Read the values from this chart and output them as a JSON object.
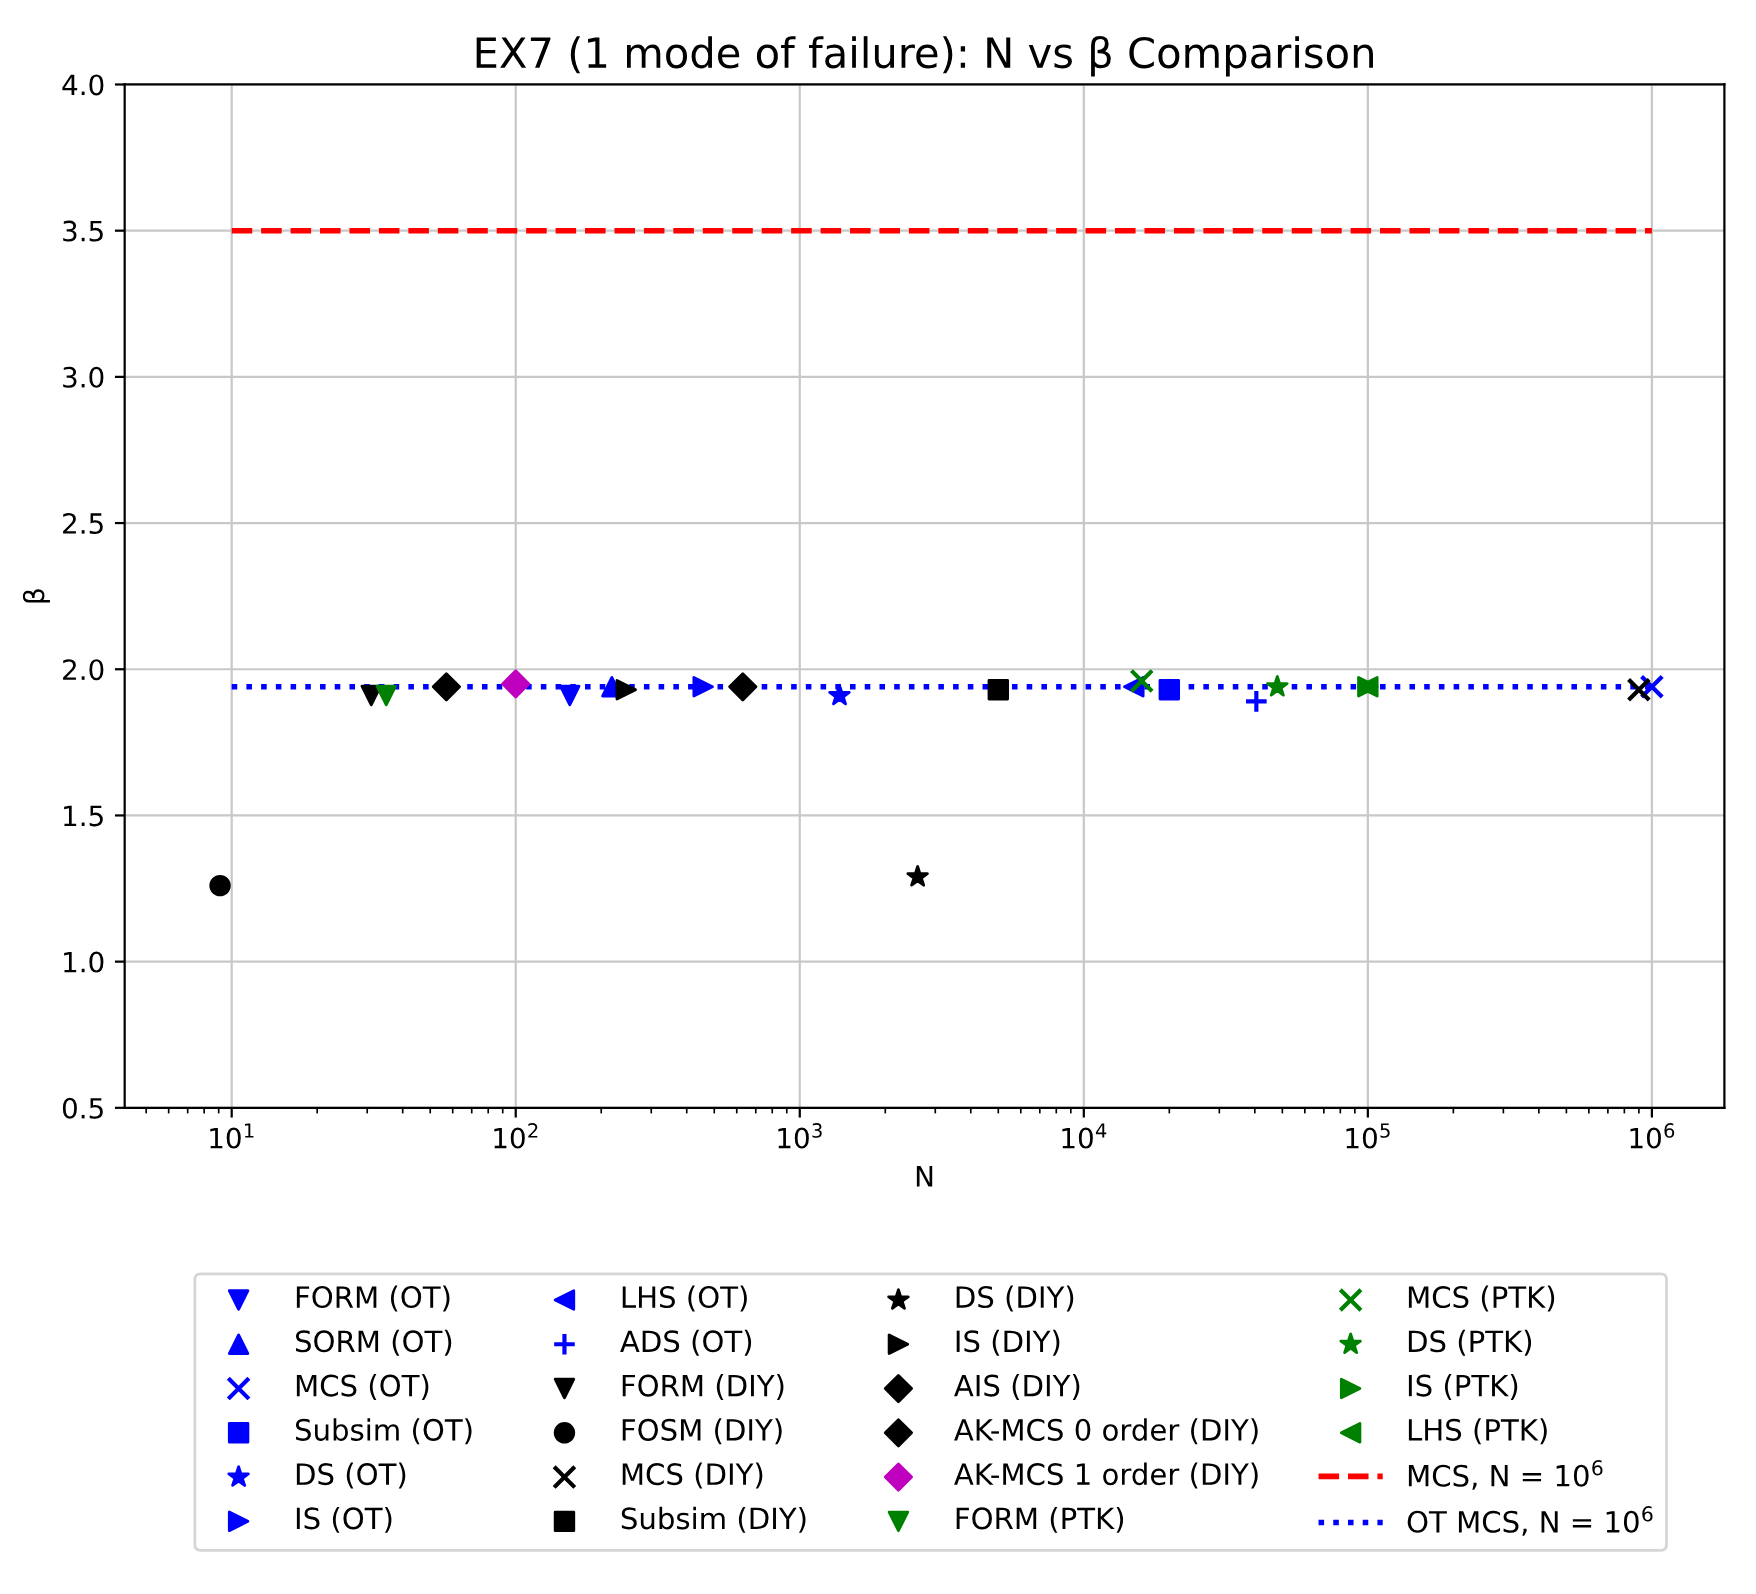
{
  "chart_data": {
    "type": "scatter",
    "title": "EX7 (1 mode of failure): N vs β Comparison",
    "xlabel": "N",
    "ylabel": "β",
    "log": "x",
    "xlim": [
      4.2,
      1800000
    ],
    "ylim": [
      0.5,
      4.0
    ],
    "xticks": [
      {
        "value": 10,
        "label": "10$^{1}$"
      },
      {
        "value": 100,
        "label": "10$^{2}$"
      },
      {
        "value": 1000,
        "label": "10$^{3}$"
      },
      {
        "value": 10000,
        "label": "10$^{4}$"
      },
      {
        "value": 100000,
        "label": "10$^{5}$"
      },
      {
        "value": 1000000,
        "label": "10$^{6}$"
      }
    ],
    "yticks": [
      {
        "value": 0.5,
        "label": "0.5"
      },
      {
        "value": 1.0,
        "label": "1.0"
      },
      {
        "value": 1.5,
        "label": "1.5"
      },
      {
        "value": 2.0,
        "label": "2.0"
      },
      {
        "value": 2.5,
        "label": "2.5"
      },
      {
        "value": 3.0,
        "label": "3.0"
      },
      {
        "value": 3.5,
        "label": "3.5"
      },
      {
        "value": 4.0,
        "label": "4.0"
      }
    ],
    "grid": true,
    "legend": "bottom",
    "series": [
      {
        "name": "FORM (OT)",
        "color": "#0000ff",
        "marker": "triangle_down",
        "x": [
          155
        ],
        "values": [
          1.91
        ]
      },
      {
        "name": "SORM (OT)",
        "color": "#0000ff",
        "marker": "triangle_up",
        "x": [
          218
        ],
        "values": [
          1.94
        ]
      },
      {
        "name": "MCS (OT)",
        "color": "#0000ff",
        "marker": "x",
        "x": [
          1000000
        ],
        "values": [
          1.94
        ]
      },
      {
        "name": "Subsim (OT)",
        "color": "#0000ff",
        "marker": "square",
        "x": [
          20000
        ],
        "values": [
          1.93
        ]
      },
      {
        "name": "DS (OT)",
        "color": "#0000ff",
        "marker": "star",
        "x": [
          1380
        ],
        "values": [
          1.91
        ]
      },
      {
        "name": "IS (OT)",
        "color": "#0000ff",
        "marker": "triangle_right",
        "x": [
          457
        ],
        "values": [
          1.94
        ]
      },
      {
        "name": "LHS (OT)",
        "color": "#0000ff",
        "marker": "triangle_left",
        "x": [
          15000
        ],
        "values": [
          1.94
        ]
      },
      {
        "name": "ADS (OT)",
        "color": "#0000ff",
        "marker": "plus",
        "x": [
          40500
        ],
        "values": [
          1.89
        ]
      },
      {
        "name": "FORM (DIY)",
        "color": "#000000",
        "marker": "triangle_down",
        "x": [
          31
        ],
        "values": [
          1.91
        ]
      },
      {
        "name": "FOSM (DIY)",
        "color": "#000000",
        "marker": "circle",
        "x": [
          9.1
        ],
        "values": [
          1.26
        ]
      },
      {
        "name": "MCS (DIY)",
        "color": "#000000",
        "marker": "x",
        "x": [
          900000
        ],
        "values": [
          1.93
        ]
      },
      {
        "name": "Subsim (DIY)",
        "color": "#000000",
        "marker": "square",
        "x": [
          5000
        ],
        "values": [
          1.93
        ]
      },
      {
        "name": "DS (DIY)",
        "color": "#000000",
        "marker": "star",
        "x": [
          2600
        ],
        "values": [
          1.29
        ]
      },
      {
        "name": "IS (DIY)",
        "color": "#000000",
        "marker": "triangle_right",
        "x": [
          245
        ],
        "values": [
          1.93
        ]
      },
      {
        "name": "AIS (DIY)",
        "color": "#000000",
        "marker": "diamond",
        "x": [
          630
        ],
        "values": [
          1.94
        ]
      },
      {
        "name": "AK-MCS 0 order (DIY)",
        "color": "#000000",
        "marker": "diamond",
        "x": [
          57
        ],
        "values": [
          1.94
        ]
      },
      {
        "name": "AK-MCS 1 order (DIY)",
        "color": "#bf00bf",
        "marker": "diamond",
        "x": [
          100
        ],
        "values": [
          1.95
        ]
      },
      {
        "name": "FORM (PTK)",
        "color": "#008000",
        "marker": "triangle_down",
        "x": [
          35
        ],
        "values": [
          1.91
        ]
      },
      {
        "name": "MCS (PTK)",
        "color": "#008000",
        "marker": "x",
        "x": [
          16000
        ],
        "values": [
          1.96
        ]
      },
      {
        "name": "DS (PTK)",
        "color": "#008000",
        "marker": "star",
        "x": [
          48000
        ],
        "values": [
          1.94
        ]
      },
      {
        "name": "IS (PTK)",
        "color": "#008000",
        "marker": "triangle_right",
        "x": [
          100000
        ],
        "values": [
          1.94
        ]
      },
      {
        "name": "LHS (PTK)",
        "color": "#008000",
        "marker": "triangle_left",
        "x": [
          100000
        ],
        "values": [
          1.94
        ]
      },
      {
        "name": "MCS, N = 10$^{6}$",
        "type": "line",
        "color": "#ff0000",
        "line_style": "dashed",
        "x": [
          10,
          1000000
        ],
        "values": [
          3.5,
          3.5
        ]
      },
      {
        "name": "OT MCS, N = 10$^{6}$",
        "type": "line",
        "color": "#0000ff",
        "line_style": "dotted",
        "x": [
          10,
          1000000
        ],
        "values": [
          1.94,
          1.94
        ]
      }
    ]
  }
}
